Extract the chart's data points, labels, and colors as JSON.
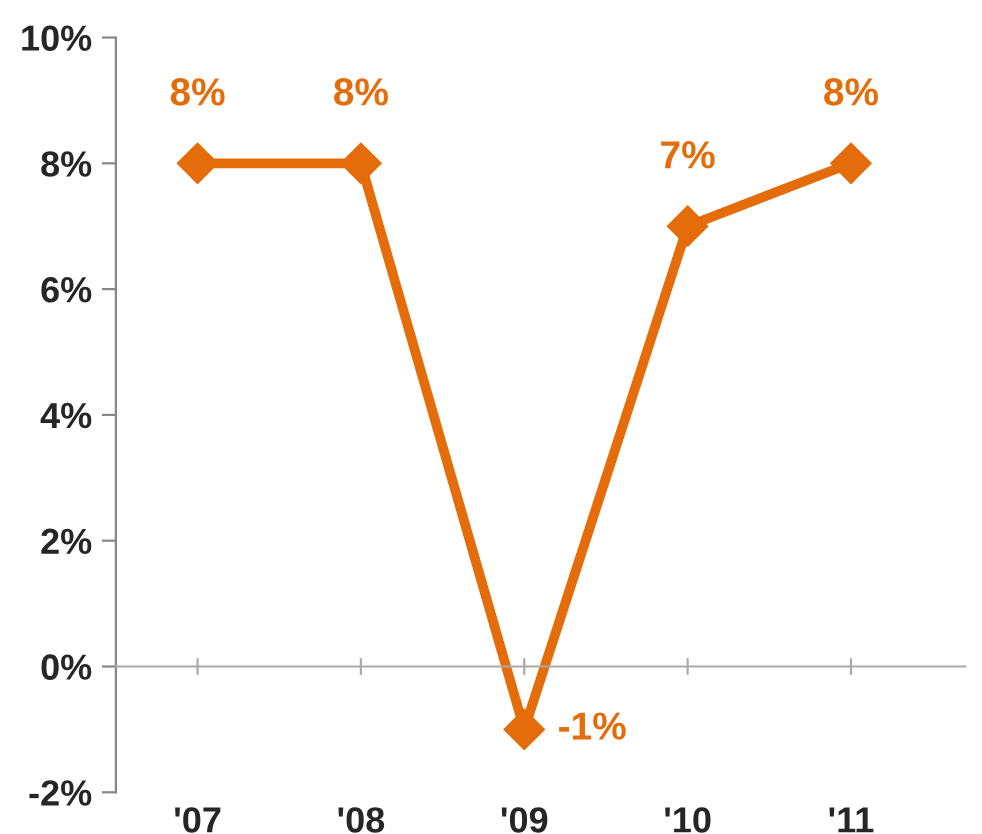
{
  "chart_data": {
    "type": "line",
    "categories": [
      "'07",
      "'08",
      "'09",
      "'10",
      "'11"
    ],
    "series": [
      {
        "color": "#e46c0a",
        "values": [
          8,
          8,
          -1,
          7,
          8
        ],
        "value_labels": [
          "8%",
          "8%",
          "-1%",
          "7%",
          "8%"
        ]
      }
    ],
    "ylim": [
      -2,
      10
    ],
    "yticks": [
      {
        "value": -2,
        "label": "-2%"
      },
      {
        "value": 0,
        "label": "0%"
      },
      {
        "value": 2,
        "label": "2%"
      },
      {
        "value": 4,
        "label": "4%"
      },
      {
        "value": 6,
        "label": "6%"
      },
      {
        "value": 8,
        "label": "8%"
      },
      {
        "value": 10,
        "label": "10%"
      }
    ],
    "marker": "diamond",
    "line_style": "solid",
    "legend": false
  }
}
